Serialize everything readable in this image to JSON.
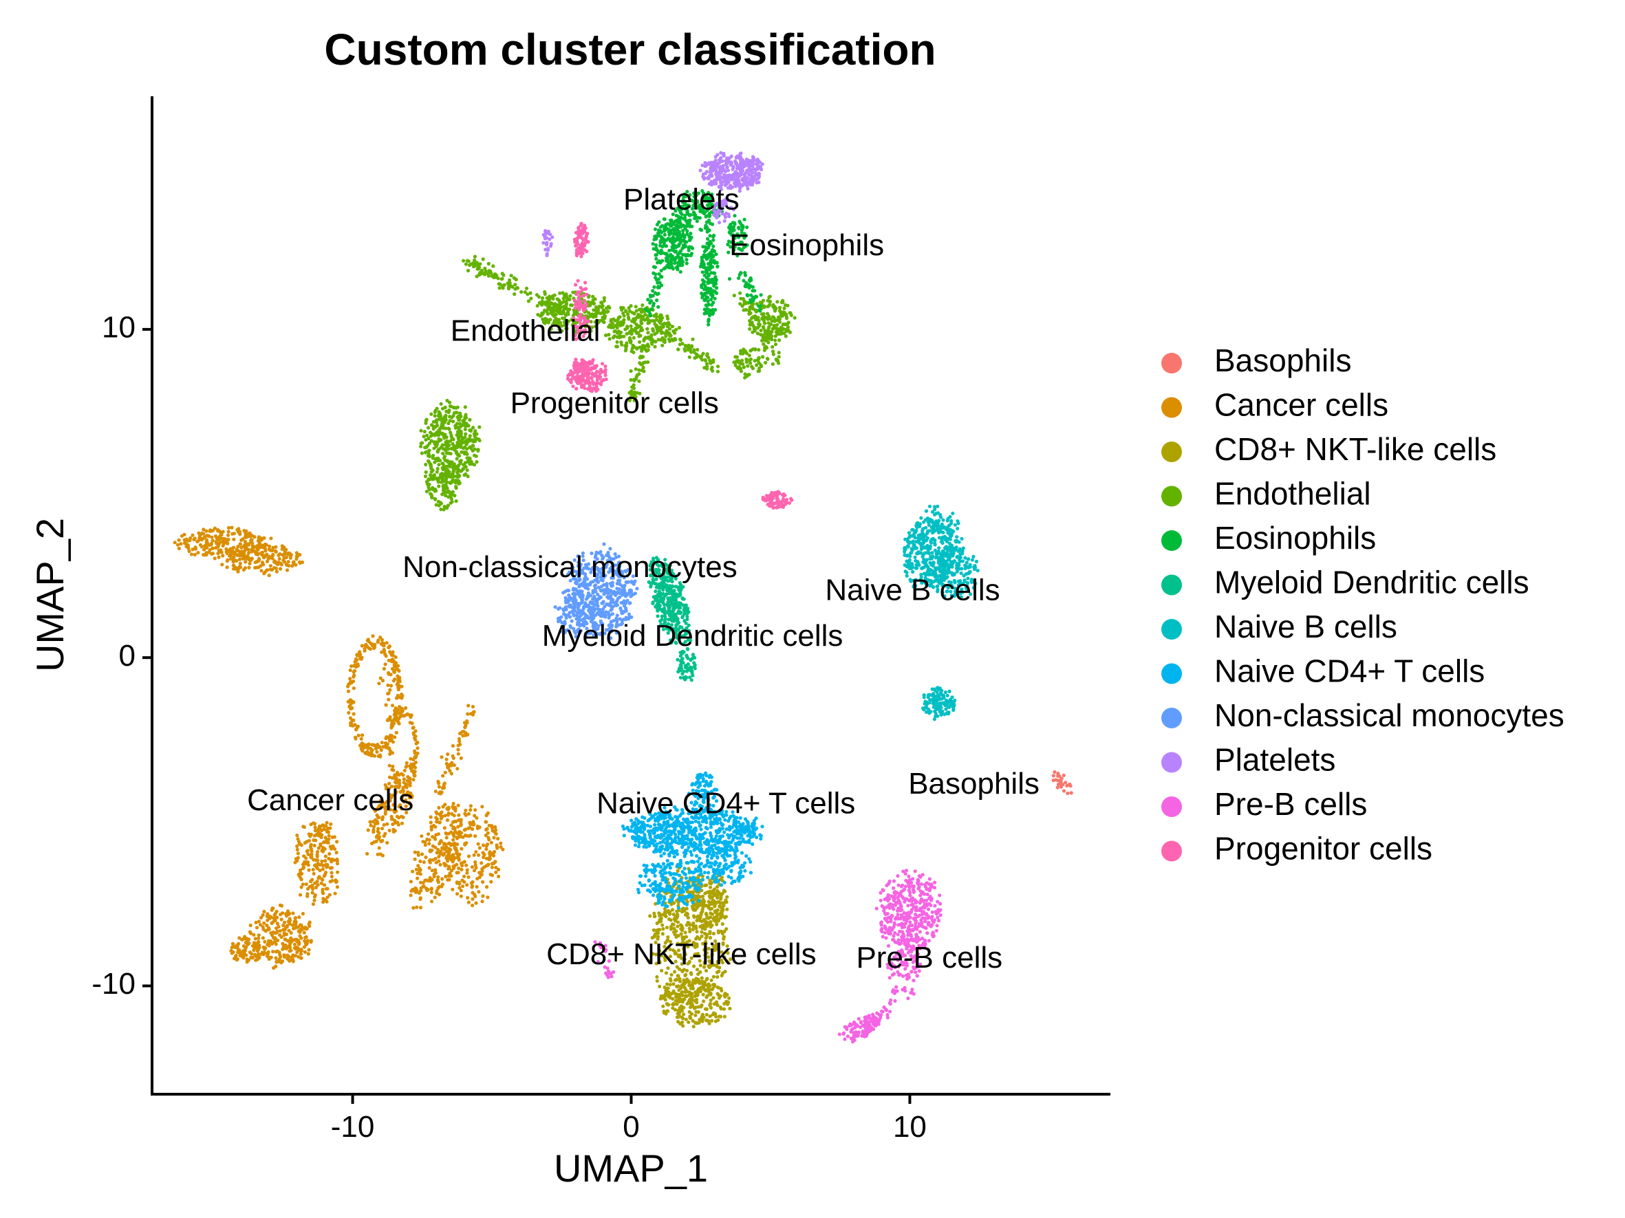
{
  "chart_data": {
    "type": "scatter",
    "title": "Custom cluster classification",
    "xlabel": "UMAP_1",
    "ylabel": "UMAP_2",
    "xlim": [
      -17.2,
      17.2
    ],
    "ylim": [
      -13.3,
      17.1
    ],
    "x_ticks": [
      -10,
      0,
      10
    ],
    "y_ticks": [
      -10,
      0,
      10
    ],
    "grid": false,
    "legend_position": "right",
    "series": [
      {
        "name": "Basophils",
        "color": "#F8766D",
        "label_at": [
          12.3,
          -3.9
        ],
        "blobs": [],
        "segments": [
          [
            15.1,
            -3.5,
            15.8,
            -4.1,
            25
          ]
        ]
      },
      {
        "name": "Cancer cells",
        "color": "#DB8E00",
        "label_at": [
          -10.8,
          -4.4
        ],
        "blobs": [
          [
            -14.6,
            3.5,
            1.6,
            0.45,
            0,
            220
          ],
          [
            -13.3,
            3.0,
            1.4,
            0.45,
            0,
            170
          ],
          [
            -8.6,
            -4.6,
            1.6,
            0.55,
            1.1,
            150
          ],
          [
            -7.0,
            -6.0,
            1.7,
            0.7,
            1.2,
            200
          ],
          [
            -5.7,
            -6.0,
            1.0,
            1.4,
            0,
            220
          ],
          [
            -12.6,
            -8.5,
            1.1,
            0.9,
            0,
            250
          ],
          [
            -11.3,
            -6.2,
            0.8,
            1.3,
            0,
            200
          ],
          [
            -13.8,
            -8.9,
            0.6,
            0.4,
            0,
            80
          ]
        ],
        "rings": [
          [
            -9.2,
            -1.2,
            0.9,
            1.7,
            0,
            220
          ],
          [
            -8.2,
            -2.8,
            0.5,
            1.2,
            0,
            90
          ]
        ],
        "segments": [
          [
            -6.9,
            -4.2,
            -5.7,
            -1.6,
            60
          ],
          [
            -8.8,
            0.5,
            -8.5,
            -3.5,
            40
          ]
        ]
      },
      {
        "name": "CD8+ NKT-like cells",
        "color": "#AEA200",
        "label_at": [
          1.8,
          -9.1
        ],
        "blobs": [
          [
            2.1,
            -8.6,
            1.4,
            2.0,
            0,
            500
          ],
          [
            2.3,
            -10.5,
            1.2,
            0.7,
            0,
            220
          ],
          [
            2.8,
            -7.4,
            0.7,
            0.8,
            0,
            120
          ]
        ],
        "segments": []
      },
      {
        "name": "Endothelial",
        "color": "#64B200",
        "label_at": [
          -3.8,
          9.9
        ],
        "blobs": [
          [
            -6.5,
            6.5,
            1.0,
            1.2,
            0,
            380
          ],
          [
            -6.8,
            5.3,
            0.6,
            0.8,
            0,
            120
          ],
          [
            -2.0,
            10.5,
            1.3,
            0.6,
            0,
            260
          ],
          [
            0.3,
            10.0,
            1.2,
            0.7,
            0,
            220
          ],
          [
            5.0,
            10.3,
            0.8,
            0.7,
            0,
            160
          ],
          [
            4.2,
            9.0,
            0.5,
            0.5,
            0,
            60
          ]
        ],
        "rings": [],
        "segments": [
          [
            -6.0,
            12.1,
            -2.5,
            10.6,
            120
          ],
          [
            0.8,
            10.2,
            3.0,
            8.8,
            80
          ],
          [
            0.5,
            9.5,
            -0.1,
            7.7,
            50
          ],
          [
            4.0,
            11.0,
            5.2,
            9.0,
            60
          ]
        ]
      },
      {
        "name": "Eosinophils",
        "color": "#00BA38",
        "label_at": [
          6.3,
          12.5
        ],
        "blobs": [
          [
            1.5,
            12.6,
            0.7,
            0.8,
            0,
            240
          ],
          [
            2.8,
            11.6,
            0.3,
            1.4,
            0,
            180
          ],
          [
            2.4,
            13.6,
            0.8,
            0.6,
            0,
            150
          ],
          [
            3.8,
            12.8,
            0.4,
            0.6,
            0,
            60
          ]
        ],
        "rings": [],
        "segments": [
          [
            1.0,
            12.0,
            0.7,
            10.5,
            40
          ],
          [
            3.9,
            11.8,
            4.6,
            10.6,
            40
          ]
        ]
      },
      {
        "name": "Myeloid Dendritic cells",
        "color": "#00C08B",
        "label_at": [
          2.2,
          0.6
        ],
        "blobs": [
          [
            1.4,
            1.7,
            0.55,
            1.4,
            0.35,
            360
          ],
          [
            2.0,
            -0.2,
            0.35,
            0.5,
            0,
            60
          ]
        ],
        "rings": [],
        "segments": []
      },
      {
        "name": "Naive B cells",
        "color": "#00BFC4",
        "label_at": [
          10.1,
          2.0
        ],
        "blobs": [
          [
            10.8,
            3.3,
            1.0,
            1.2,
            -0.4,
            420
          ],
          [
            11.6,
            2.6,
            0.8,
            0.8,
            0,
            160
          ],
          [
            11.0,
            -1.4,
            0.6,
            0.45,
            0,
            130
          ]
        ],
        "rings": [],
        "segments": []
      },
      {
        "name": "Naive CD4+ T cells",
        "color": "#00B4F0",
        "label_at": [
          3.4,
          -4.5
        ],
        "blobs": [
          [
            2.2,
            -5.3,
            2.4,
            0.7,
            0,
            650
          ],
          [
            1.5,
            -6.8,
            1.2,
            0.8,
            0,
            220
          ],
          [
            2.6,
            -4.1,
            0.5,
            0.6,
            0,
            80
          ],
          [
            3.4,
            -6.3,
            0.9,
            0.6,
            0,
            120
          ]
        ],
        "rings": [],
        "segments": []
      },
      {
        "name": "Non-classical monocytes",
        "color": "#619CFF",
        "label_at": [
          -2.2,
          2.7
        ],
        "blobs": [
          [
            -1.1,
            2.0,
            1.2,
            1.3,
            0,
            450
          ],
          [
            -1.8,
            1.3,
            0.9,
            0.7,
            0,
            140
          ]
        ],
        "rings": [],
        "segments": []
      },
      {
        "name": "Platelets",
        "color": "#B983FF",
        "label_at": [
          1.8,
          13.9
        ],
        "blobs": [
          [
            3.6,
            14.8,
            1.1,
            0.55,
            0,
            320
          ],
          [
            3.3,
            13.6,
            0.35,
            0.4,
            0,
            40
          ],
          [
            -3.0,
            12.7,
            0.2,
            0.4,
            0,
            25
          ]
        ],
        "rings": [],
        "segments": []
      },
      {
        "name": "Pre-B cells",
        "color": "#F564E3",
        "label_at": [
          10.7,
          -9.2
        ],
        "blobs": [
          [
            10.0,
            -7.8,
            1.1,
            1.2,
            0,
            400
          ],
          [
            9.8,
            -9.6,
            0.6,
            0.8,
            0,
            90
          ],
          [
            8.2,
            -11.3,
            0.8,
            0.3,
            0.4,
            90
          ]
        ],
        "rings": [],
        "segments": [
          [
            9.5,
            -10.5,
            8.2,
            -11.4,
            40
          ],
          [
            -0.7,
            -9.7,
            -1.1,
            -8.8,
            20
          ]
        ]
      },
      {
        "name": "Progenitor cells",
        "color": "#FF64B0",
        "label_at": [
          -0.6,
          7.7
        ],
        "blobs": [
          [
            -1.8,
            12.7,
            0.25,
            0.5,
            0,
            70
          ],
          [
            -1.8,
            10.6,
            0.3,
            1.0,
            0,
            70
          ],
          [
            -1.6,
            8.6,
            0.7,
            0.5,
            0,
            180
          ],
          [
            5.2,
            4.8,
            0.5,
            0.25,
            0,
            90
          ]
        ],
        "rings": [],
        "segments": []
      }
    ]
  }
}
